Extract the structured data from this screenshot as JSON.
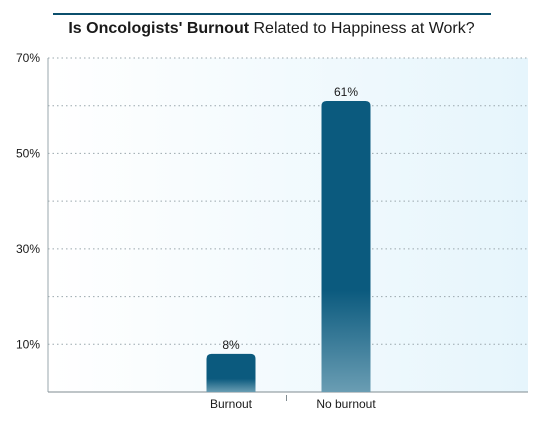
{
  "title": {
    "bold": "Is Oncologists' Burnout",
    "rest": " Related to Happiness at Work?"
  },
  "colors": {
    "bar_top": "#0b5a7e",
    "bar_bottom": "#6a9db3",
    "plot_bg_left": "#ffffff",
    "plot_bg_right": "#e6f5fc",
    "title_rule": "#0b4f6c"
  },
  "chart_data": {
    "type": "bar",
    "categories": [
      "Burnout",
      "No burnout"
    ],
    "values": [
      8,
      61
    ],
    "data_labels": [
      "8%",
      "61%"
    ],
    "y_tick_values": [
      10,
      30,
      50,
      70
    ],
    "y_tick_labels": [
      "10%",
      "30%",
      "50%",
      "70%"
    ],
    "ylim": [
      0,
      70
    ],
    "grid": true,
    "grid_values": [
      10,
      20,
      30,
      40,
      50,
      60,
      70
    ],
    "xlabel": "",
    "ylabel": ""
  }
}
